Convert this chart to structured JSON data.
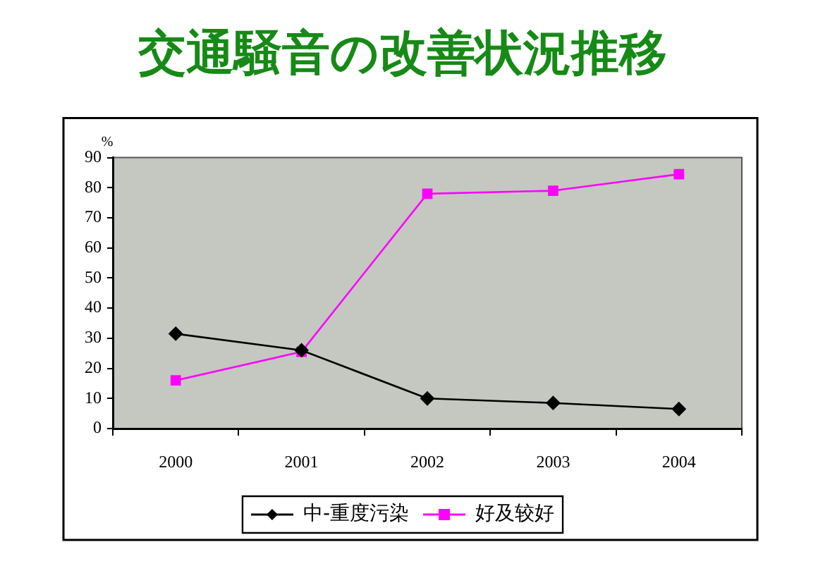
{
  "chart_data": {
    "type": "line",
    "title": "交通騒音の改善状況推移",
    "ylabel": "%",
    "categories": [
      "2000",
      "2001",
      "2002",
      "2003",
      "2004"
    ],
    "series": [
      {
        "name": "中-重度污染",
        "color": "#000000",
        "marker": "diamond",
        "values": [
          31.5,
          26,
          10,
          8.5,
          6.5
        ]
      },
      {
        "name": "好及较好",
        "color": "#ff00ff",
        "marker": "square",
        "values": [
          16,
          25.5,
          78,
          79,
          84.5
        ]
      }
    ],
    "ylim": [
      0,
      90
    ],
    "yticks": [
      0,
      10,
      20,
      30,
      40,
      50,
      60,
      70,
      80,
      90
    ],
    "grid": false,
    "legend": "bottom",
    "line_style": "solid"
  }
}
